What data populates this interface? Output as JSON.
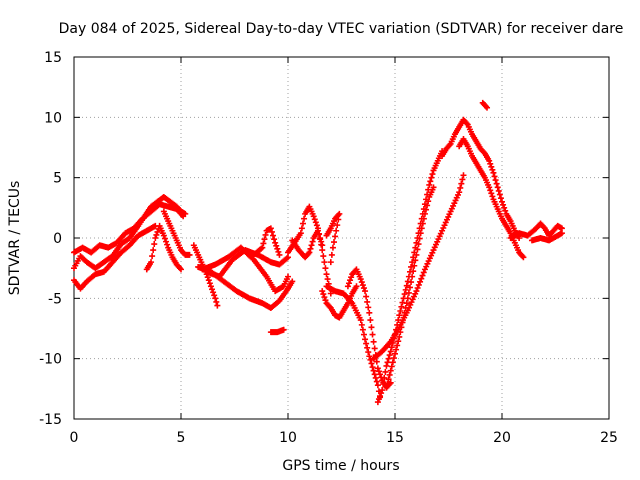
{
  "chart_data": {
    "type": "scatter",
    "title": "Day 084 of 2025, Sidereal Day-to-day VTEC variation (SDTVAR) for receiver dare",
    "xlabel": "GPS time / hours",
    "ylabel": "SDTVAR / TECUs",
    "xlim": [
      0,
      25
    ],
    "ylim": [
      -15,
      15
    ],
    "xticks": [
      0,
      5,
      10,
      15,
      20,
      25
    ],
    "yticks": [
      -15,
      -10,
      -5,
      0,
      5,
      10,
      15
    ],
    "grid": true,
    "marker": "+",
    "series": [
      {
        "color": "#ff0000",
        "tracks": [
          [
            [
              0,
              -2.5
            ],
            [
              0.3,
              -1.5
            ],
            [
              0.6,
              -2
            ],
            [
              1,
              -2.5
            ],
            [
              1.4,
              -2
            ],
            [
              1.8,
              -1.5
            ],
            [
              2.2,
              -0.5
            ],
            [
              2.6,
              0
            ],
            [
              3.0,
              1
            ],
            [
              3.3,
              1.8
            ],
            [
              3.6,
              2.6
            ],
            [
              3.9,
              3.0
            ],
            [
              4.2,
              3.4
            ],
            [
              4.5,
              3.0
            ],
            [
              4.8,
              2.6
            ],
            [
              5.0,
              2.2
            ],
            [
              5.2,
              2.0
            ]
          ],
          [
            [
              0,
              -1.2
            ],
            [
              0.4,
              -0.8
            ],
            [
              0.8,
              -1.2
            ],
            [
              1.2,
              -0.6
            ],
            [
              1.6,
              -0.8
            ],
            [
              2.0,
              -0.4
            ],
            [
              2.4,
              0.4
            ],
            [
              2.8,
              0.8
            ],
            [
              3.2,
              1.6
            ],
            [
              3.6,
              2.2
            ],
            [
              4.0,
              2.8
            ],
            [
              4.4,
              2.6
            ],
            [
              4.8,
              2.4
            ],
            [
              5.1,
              1.8
            ]
          ],
          [
            [
              0,
              -3.5
            ],
            [
              0.3,
              -4.2
            ],
            [
              0.6,
              -3.6
            ],
            [
              1.0,
              -3.0
            ],
            [
              1.4,
              -2.8
            ],
            [
              1.8,
              -2.0
            ],
            [
              2.2,
              -1.2
            ],
            [
              2.6,
              -0.6
            ],
            [
              3.0,
              0.2
            ],
            [
              3.4,
              0.6
            ],
            [
              3.8,
              1.0
            ]
          ],
          [
            [
              3.4,
              -2.6
            ],
            [
              3.6,
              -2.0
            ],
            [
              3.8,
              0.0
            ],
            [
              4.0,
              1.0
            ],
            [
              4.2,
              0.2
            ],
            [
              4.4,
              -0.8
            ],
            [
              4.6,
              -1.6
            ],
            [
              4.8,
              -2.2
            ],
            [
              5.0,
              -2.6
            ]
          ],
          [
            [
              4.2,
              2.2
            ],
            [
              4.4,
              1.4
            ],
            [
              4.6,
              0.6
            ],
            [
              4.8,
              -0.2
            ],
            [
              5.0,
              -1.0
            ],
            [
              5.2,
              -1.4
            ],
            [
              5.4,
              -1.4
            ]
          ],
          [
            [
              5.6,
              -0.6
            ],
            [
              5.8,
              -1.4
            ],
            [
              6.0,
              -2.2
            ],
            [
              6.2,
              -3.0
            ],
            [
              6.4,
              -4.0
            ],
            [
              6.6,
              -5.0
            ],
            [
              6.7,
              -5.6
            ]
          ],
          [
            [
              5.8,
              -2.4
            ],
            [
              6.4,
              -2.8
            ],
            [
              7.0,
              -3.6
            ],
            [
              7.6,
              -4.4
            ],
            [
              8.2,
              -5.0
            ],
            [
              8.8,
              -5.4
            ],
            [
              9.2,
              -5.8
            ],
            [
              9.6,
              -5.2
            ],
            [
              10.0,
              -4.2
            ],
            [
              10.2,
              -3.6
            ]
          ],
          [
            [
              6.0,
              -2.6
            ],
            [
              6.6,
              -2.2
            ],
            [
              7.2,
              -1.6
            ],
            [
              7.8,
              -0.8
            ],
            [
              8.4,
              -1.8
            ],
            [
              9.0,
              -3.2
            ],
            [
              9.4,
              -4.4
            ],
            [
              9.8,
              -4.0
            ],
            [
              10.0,
              -3.2
            ]
          ],
          [
            [
              6.2,
              -2.8
            ],
            [
              6.8,
              -3.2
            ],
            [
              7.4,
              -1.8
            ],
            [
              8.0,
              -1.0
            ],
            [
              8.6,
              -1.4
            ],
            [
              9.2,
              -2.0
            ],
            [
              9.6,
              -2.2
            ],
            [
              10.0,
              -1.6
            ]
          ],
          [
            [
              8.0,
              -1.0
            ],
            [
              8.4,
              -1.4
            ],
            [
              8.8,
              -0.8
            ],
            [
              9.0,
              0.6
            ],
            [
              9.2,
              0.8
            ],
            [
              9.4,
              -0.4
            ],
            [
              9.6,
              -1.4
            ]
          ],
          [
            [
              9.2,
              -7.8
            ],
            [
              9.5,
              -7.8
            ],
            [
              9.8,
              -7.6
            ]
          ],
          [
            [
              10.0,
              -1.2
            ],
            [
              10.3,
              -0.4
            ],
            [
              10.6,
              0.4
            ],
            [
              10.8,
              2.0
            ],
            [
              11.0,
              2.6
            ],
            [
              11.2,
              1.8
            ],
            [
              11.4,
              0.8
            ],
            [
              11.6,
              -1.0
            ],
            [
              11.8,
              -3.0
            ],
            [
              12.0,
              -4.6
            ]
          ],
          [
            [
              10.2,
              -0.2
            ],
            [
              10.5,
              -1.0
            ],
            [
              10.8,
              -1.6
            ],
            [
              11.0,
              -1.2
            ],
            [
              11.2,
              0.0
            ],
            [
              11.4,
              0.6
            ],
            [
              11.6,
              -0.6
            ]
          ],
          [
            [
              11.8,
              0.2
            ],
            [
              12.0,
              0.8
            ],
            [
              12.2,
              1.6
            ],
            [
              12.4,
              2.0
            ],
            [
              12.1,
              -0.8
            ],
            [
              12.0,
              -2.0
            ]
          ],
          [
            [
              11.6,
              -4.4
            ],
            [
              11.8,
              -5.4
            ],
            [
              12.0,
              -5.8
            ],
            [
              12.2,
              -6.4
            ],
            [
              12.4,
              -6.6
            ],
            [
              12.6,
              -6.0
            ],
            [
              12.8,
              -5.4
            ],
            [
              13.0,
              -4.6
            ],
            [
              13.2,
              -4.0
            ]
          ],
          [
            [
              11.8,
              -4.0
            ],
            [
              12.2,
              -4.4
            ],
            [
              12.6,
              -4.6
            ],
            [
              13.0,
              -5.4
            ],
            [
              13.4,
              -6.8
            ],
            [
              13.6,
              -8.4
            ],
            [
              13.8,
              -9.8
            ],
            [
              14.0,
              -11.0
            ],
            [
              14.2,
              -12.2
            ],
            [
              14.3,
              -13.2
            ]
          ],
          [
            [
              12.8,
              -4.0
            ],
            [
              13.0,
              -3.0
            ],
            [
              13.2,
              -2.6
            ],
            [
              13.4,
              -3.4
            ],
            [
              13.6,
              -4.4
            ],
            [
              13.8,
              -6.2
            ],
            [
              14.0,
              -8.6
            ],
            [
              14.2,
              -10.8
            ],
            [
              14.4,
              -11.8
            ],
            [
              14.6,
              -12.4
            ],
            [
              14.8,
              -12.0
            ]
          ],
          [
            [
              14.2,
              -13.6
            ],
            [
              14.4,
              -12.6
            ],
            [
              14.6,
              -10.6
            ],
            [
              14.8,
              -9.4
            ],
            [
              15.0,
              -8.0
            ],
            [
              15.2,
              -6.4
            ],
            [
              15.4,
              -5.0
            ],
            [
              15.6,
              -3.6
            ],
            [
              15.8,
              -2.0
            ],
            [
              16.0,
              -0.4
            ],
            [
              16.2,
              1.2
            ],
            [
              16.4,
              2.8
            ],
            [
              16.6,
              4.4
            ],
            [
              16.8,
              5.6
            ],
            [
              17.0,
              6.4
            ],
            [
              17.2,
              7.2
            ]
          ],
          [
            [
              14.6,
              -12.4
            ],
            [
              14.8,
              -11.0
            ],
            [
              15.0,
              -9.6
            ],
            [
              15.2,
              -8.2
            ],
            [
              15.4,
              -6.6
            ],
            [
              15.6,
              -5.0
            ],
            [
              15.8,
              -3.2
            ],
            [
              16.0,
              -1.4
            ],
            [
              16.2,
              0.4
            ],
            [
              16.4,
              2.0
            ],
            [
              16.6,
              3.4
            ],
            [
              16.8,
              4.2
            ]
          ],
          [
            [
              14.0,
              -10.0
            ],
            [
              14.4,
              -9.4
            ],
            [
              14.8,
              -8.6
            ],
            [
              15.2,
              -7.4
            ],
            [
              15.6,
              -6.0
            ],
            [
              16.0,
              -4.4
            ],
            [
              16.4,
              -2.6
            ],
            [
              16.8,
              -1.0
            ],
            [
              17.2,
              0.6
            ],
            [
              17.6,
              2.2
            ],
            [
              18.0,
              3.8
            ],
            [
              18.2,
              5.2
            ]
          ],
          [
            [
              17.2,
              6.8
            ],
            [
              17.4,
              7.4
            ],
            [
              17.6,
              7.8
            ],
            [
              17.8,
              8.6
            ],
            [
              18.0,
              9.2
            ],
            [
              18.2,
              9.8
            ],
            [
              18.4,
              9.4
            ],
            [
              18.6,
              8.6
            ],
            [
              18.8,
              8.0
            ],
            [
              19.0,
              7.4
            ],
            [
              19.2,
              7.0
            ],
            [
              19.4,
              6.4
            ],
            [
              19.6,
              5.4
            ],
            [
              19.8,
              4.2
            ],
            [
              20.0,
              3.0
            ],
            [
              20.2,
              2.0
            ],
            [
              20.4,
              1.4
            ],
            [
              20.6,
              0.6
            ],
            [
              20.8,
              0.0
            ]
          ],
          [
            [
              18.0,
              7.6
            ],
            [
              18.2,
              8.2
            ],
            [
              18.4,
              7.6
            ],
            [
              18.6,
              6.8
            ],
            [
              18.8,
              6.2
            ],
            [
              19.0,
              5.6
            ],
            [
              19.2,
              5.0
            ],
            [
              19.4,
              4.2
            ],
            [
              19.6,
              3.2
            ],
            [
              19.8,
              2.4
            ],
            [
              20.0,
              1.6
            ],
            [
              20.2,
              1.0
            ],
            [
              20.4,
              0.4
            ],
            [
              20.6,
              -0.4
            ],
            [
              20.8,
              -1.2
            ],
            [
              21.0,
              -1.6
            ]
          ],
          [
            [
              19.1,
              11.2
            ],
            [
              19.2,
              11.0
            ],
            [
              19.3,
              10.8
            ]
          ],
          [
            [
              20.4,
              0.0
            ],
            [
              20.8,
              0.4
            ],
            [
              21.2,
              0.2
            ],
            [
              21.6,
              0.8
            ],
            [
              21.8,
              1.2
            ],
            [
              22.0,
              0.8
            ],
            [
              22.2,
              0.2
            ],
            [
              22.4,
              0.6
            ],
            [
              22.6,
              1.0
            ],
            [
              22.8,
              0.8
            ]
          ],
          [
            [
              21.4,
              -0.2
            ],
            [
              21.8,
              0.0
            ],
            [
              22.2,
              -0.2
            ],
            [
              22.6,
              0.2
            ],
            [
              22.8,
              0.4
            ]
          ]
        ]
      }
    ]
  }
}
